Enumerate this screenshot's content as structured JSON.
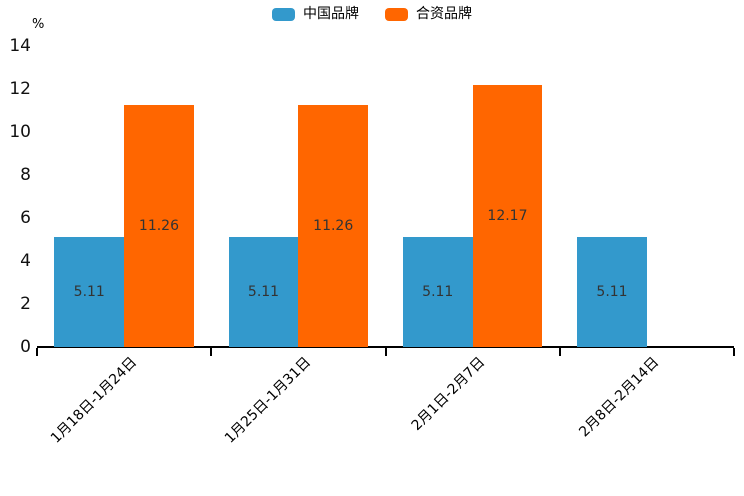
{
  "chart_data": {
    "type": "bar",
    "title": "",
    "ylabel": "%",
    "categories": [
      "1月18日-1月24日",
      "1月25日-1月31日",
      "2月1日-2月7日",
      "2月8日-2月14日"
    ],
    "series": [
      {
        "name": "中国品牌",
        "color": "#3399cc",
        "values": [
          5.11,
          5.11,
          5.11,
          5.11
        ]
      },
      {
        "name": "合资品牌",
        "color": "#ff6600",
        "values": [
          11.26,
          11.26,
          12.17,
          null
        ]
      }
    ],
    "value_labels": [
      "5.11",
      "11.26",
      "12.17"
    ],
    "ylim": [
      0,
      14
    ],
    "yticks": [
      0,
      2,
      4,
      6,
      8,
      10,
      12,
      14
    ],
    "legend_position": "top-center",
    "grid": false,
    "value_label_position": "inside-center",
    "value_label_color": "#333333",
    "axis_color": "#000000",
    "x_label_rotation_deg": 45
  }
}
